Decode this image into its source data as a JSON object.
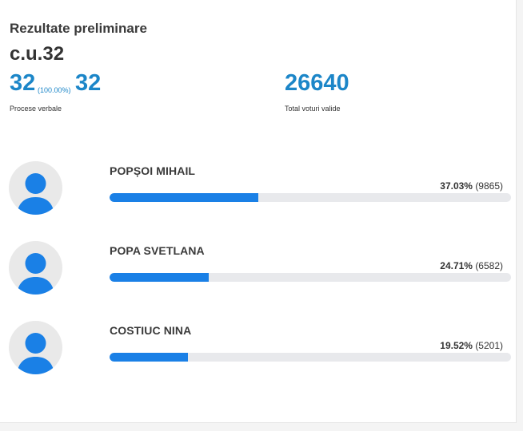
{
  "header": {
    "title": "Rezultate preliminare",
    "unit": "c.u.32"
  },
  "stats": {
    "processed": "32",
    "processed_pct": "(100.00%)",
    "total": "32",
    "processed_label": "Procese verbale",
    "valid_votes": "26640",
    "valid_votes_label": "Total voturi valide"
  },
  "candidates": [
    {
      "name": "POPȘOI MIHAIL",
      "percent": "37.03%",
      "votes": "(9865)",
      "share": 0.3703
    },
    {
      "name": "POPA SVETLANA",
      "percent": "24.71%",
      "votes": "(6582)",
      "share": 0.2471
    },
    {
      "name": "COSTIUC NINA",
      "percent": "19.52%",
      "votes": "(5201)",
      "share": 0.1952
    }
  ],
  "colors": {
    "accent": "#1c86c8",
    "bar_fill": "#1a80e6",
    "bar_track": "#e8e9ec",
    "avatar_bg": "#e9e9e9",
    "avatar_figure": "#1a80e6"
  },
  "icons": {
    "avatar": "user-avatar-icon"
  }
}
